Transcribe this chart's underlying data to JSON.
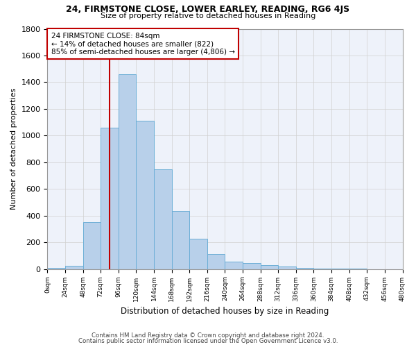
{
  "title1": "24, FIRMSTONE CLOSE, LOWER EARLEY, READING, RG6 4JS",
  "title2": "Size of property relative to detached houses in Reading",
  "xlabel": "Distribution of detached houses by size in Reading",
  "ylabel": "Number of detached properties",
  "bar_values": [
    10,
    25,
    350,
    1060,
    1460,
    1110,
    745,
    435,
    225,
    110,
    55,
    45,
    30,
    20,
    10,
    5,
    3,
    2
  ],
  "bin_starts": [
    0,
    24,
    48,
    72,
    96,
    120,
    144,
    168,
    192,
    216,
    240,
    264,
    288,
    312,
    336,
    360,
    384,
    408
  ],
  "tick_labels": [
    "0sqm",
    "24sqm",
    "48sqm",
    "72sqm",
    "96sqm",
    "120sqm",
    "144sqm",
    "168sqm",
    "192sqm",
    "216sqm",
    "240sqm",
    "264sqm",
    "288sqm",
    "312sqm",
    "336sqm",
    "360sqm",
    "384sqm",
    "408sqm",
    "432sqm",
    "456sqm",
    "480sqm"
  ],
  "bar_color": "#b8d0ea",
  "bar_edge_color": "#6baed6",
  "annotation_line1": "24 FIRMSTONE CLOSE: 84sqm",
  "annotation_line2": "← 14% of detached houses are smaller (822)",
  "annotation_line3": "85% of semi-detached houses are larger (4,806) →",
  "vline_x": 84,
  "vline_color": "#c00000",
  "annotation_box_color": "#c00000",
  "ylim": [
    0,
    1800
  ],
  "yticks": [
    0,
    200,
    400,
    600,
    800,
    1000,
    1200,
    1400,
    1600,
    1800
  ],
  "footer1": "Contains HM Land Registry data © Crown copyright and database right 2024.",
  "footer2": "Contains public sector information licensed under the Open Government Licence v3.0.",
  "bg_color": "#eef2fa",
  "grid_color": "#d0d0d0"
}
